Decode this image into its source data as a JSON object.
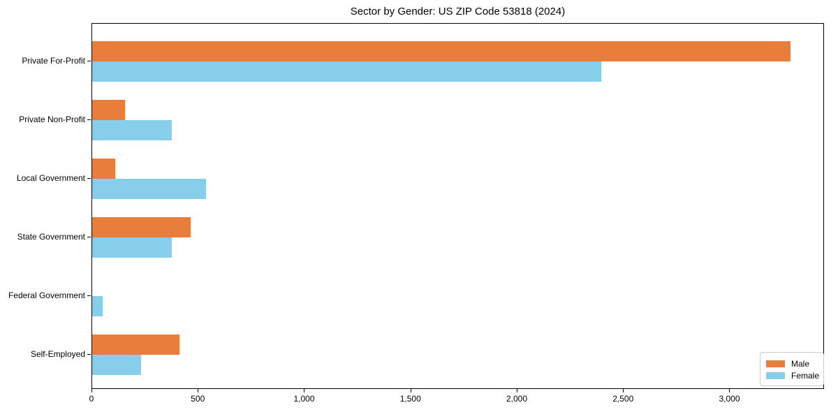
{
  "chart_data": {
    "type": "bar",
    "orientation": "horizontal",
    "title": "Sector by Gender: US ZIP Code 53818 (2024)",
    "categories": [
      "Private For-Profit",
      "Private Non-Profit",
      "Local Government",
      "State Government",
      "Federal Government",
      "Self-Employed"
    ],
    "series": [
      {
        "name": "Male",
        "color": "#E87D3C",
        "values": [
          3290,
          155,
          110,
          465,
          0,
          410
        ]
      },
      {
        "name": "Female",
        "color": "#87CEEB",
        "values": [
          2400,
          375,
          535,
          375,
          50,
          230
        ]
      }
    ],
    "xlabel": "",
    "ylabel": "",
    "xlim": [
      0,
      3445
    ],
    "xticks": [
      0,
      500,
      1000,
      1500,
      2000,
      2500,
      3000
    ],
    "xtick_labels": [
      "0",
      "500",
      "1,000",
      "1,500",
      "2,000",
      "2,500",
      "3,000"
    ],
    "legend": {
      "position": "lower-right",
      "entries": [
        "Male",
        "Female"
      ]
    },
    "grid": false,
    "background": "#ffffff",
    "spine_color": "#000000"
  }
}
